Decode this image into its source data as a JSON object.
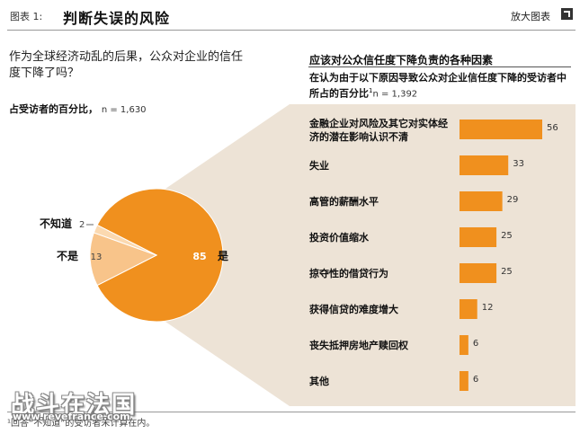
{
  "header": {
    "figure_label": "图表 1:",
    "title": "判断失误的风险",
    "enlarge_label": "放大图表",
    "enlarge_icon": "expand-icon"
  },
  "left": {
    "question": "作为全球经济动乱的后果，公众对企业的信任度下降了吗？",
    "subtitle": "占受访者的百分比，",
    "n_text": "n = 1,630"
  },
  "right": {
    "title": "应该对公众信任度下降负责的各种因素",
    "subtitle": "在认为由于以下原因导致公众对企业信任度下降的受访者中所占的百分比",
    "footnote_mark": "1",
    "n_text": "n = 1,392"
  },
  "colors": {
    "orange": "#f0901e",
    "light_orange": "#f8c48a",
    "lightest_orange": "#fbd9b0",
    "panel_bg": "#ede3d6"
  },
  "chart_data": [
    {
      "type": "pie",
      "slices": [
        {
          "label": "是",
          "value": 85
        },
        {
          "label": "不是",
          "value": 13
        },
        {
          "label": "不知道",
          "value": 2
        }
      ]
    },
    {
      "type": "bar",
      "orientation": "horizontal",
      "categories": [
        "金融企业对风险及其它对实体经济的潜在影响认识不清",
        "失业",
        "高管的薪酬水平",
        "投资价值缩水",
        "掠夺性的借贷行为",
        "获得信贷的难度增大",
        "丧失抵押房地产赎回权",
        "其他"
      ],
      "values": [
        56,
        33,
        29,
        25,
        25,
        12,
        6,
        6
      ],
      "xlim": [
        0,
        56
      ]
    }
  ],
  "footnote": "¹回答“不知道”的受访者未计算在内。",
  "watermark": {
    "text": "战斗在法国",
    "url": "www.revefrance.com"
  }
}
